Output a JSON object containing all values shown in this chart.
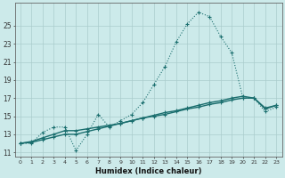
{
  "xlabel": "Humidex (Indice chaleur)",
  "background_color": "#cceaea",
  "grid_color": "#aacccc",
  "line_color": "#1a6e6e",
  "x_values": [
    0,
    1,
    2,
    3,
    4,
    5,
    6,
    7,
    8,
    9,
    10,
    11,
    12,
    13,
    14,
    15,
    16,
    17,
    18,
    19,
    20,
    21,
    22,
    23
  ],
  "y_dotted": [
    12.0,
    12.0,
    13.2,
    13.8,
    13.8,
    11.2,
    13.0,
    15.2,
    13.8,
    14.5,
    15.2,
    16.5,
    18.5,
    20.5,
    23.2,
    25.2,
    26.5,
    26.0,
    23.8,
    22.0,
    17.0,
    17.0,
    15.5,
    16.0
  ],
  "y_solid1": [
    12.0,
    12.2,
    12.6,
    13.0,
    13.4,
    13.4,
    13.6,
    13.8,
    14.0,
    14.2,
    14.5,
    14.8,
    15.0,
    15.2,
    15.5,
    15.8,
    16.0,
    16.3,
    16.5,
    16.8,
    17.0,
    17.0,
    15.8,
    16.2
  ],
  "y_solid2": [
    12.0,
    12.1,
    12.4,
    12.7,
    13.0,
    13.0,
    13.3,
    13.6,
    13.9,
    14.2,
    14.5,
    14.8,
    15.1,
    15.4,
    15.6,
    15.9,
    16.2,
    16.5,
    16.7,
    17.0,
    17.2,
    17.0,
    15.9,
    16.2
  ],
  "ylim": [
    10.5,
    27.5
  ],
  "xlim": [
    -0.5,
    23.5
  ],
  "yticks": [
    11,
    13,
    15,
    17,
    19,
    21,
    23,
    25
  ],
  "xticks": [
    0,
    1,
    2,
    3,
    4,
    5,
    6,
    7,
    8,
    9,
    10,
    11,
    12,
    13,
    14,
    15,
    16,
    17,
    18,
    19,
    20,
    21,
    22,
    23
  ]
}
